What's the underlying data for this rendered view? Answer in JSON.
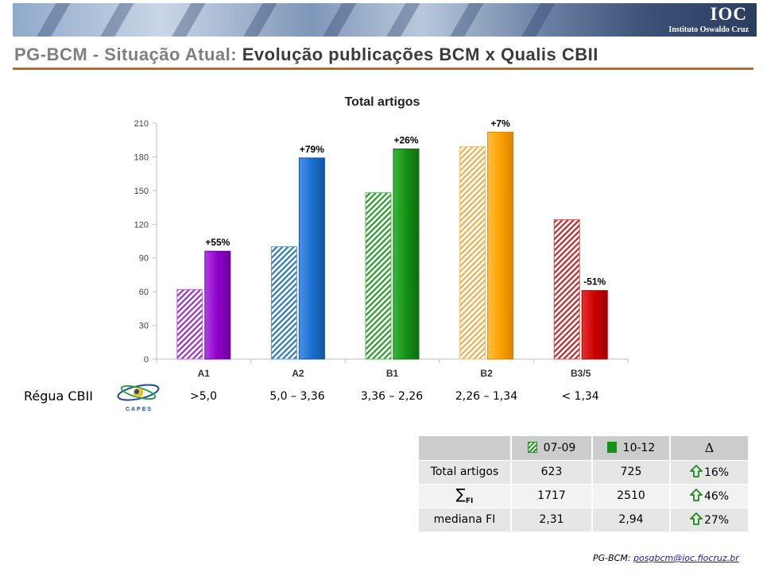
{
  "banner": {
    "logo_text": "IOC",
    "institution": "Instituto Oswaldo Cruz"
  },
  "title": {
    "prefix": "PG-BCM - Situação Atual:",
    "main": "Evolução publicações BCM x Qualis CBII"
  },
  "colors": {
    "title_rule": "#c06a1e",
    "A1": "#8c00c8",
    "A2": "#1a6ed0",
    "B1": "#169016",
    "B2": "#ffa000",
    "B3_5": "#cc0000"
  },
  "chart_data": {
    "type": "bar",
    "title": "Total artigos",
    "categories": [
      "A1",
      "A2",
      "B1",
      "B2",
      "B3/5"
    ],
    "series": [
      {
        "name": "07-09",
        "pattern": "hatched",
        "values": [
          62,
          100,
          148,
          189,
          124
        ]
      },
      {
        "name": "10-12",
        "pattern": "solid",
        "values": [
          96,
          179,
          187,
          202,
          61
        ]
      }
    ],
    "change_labels": [
      "+55%",
      "+79%",
      "+26%",
      "+7%",
      "-51%"
    ],
    "ylim": [
      0,
      210
    ],
    "yticks": [
      0,
      30,
      60,
      90,
      120,
      150,
      180,
      210
    ],
    "grid": true
  },
  "regua": {
    "label": "Régua CBII",
    "logo_text": "CAPES",
    "values": [
      ">5,0",
      "5,0 – 3,36",
      "3,36 – 2,26",
      "2,26 – 1,34",
      "< 1,34"
    ]
  },
  "table": {
    "headers": [
      "",
      "07-09",
      "10-12",
      "Δ"
    ],
    "rows": [
      {
        "label": "Total artigos",
        "v1": "623",
        "v2": "725",
        "delta": "16%"
      },
      {
        "label": "∑",
        "label_sub": "FI",
        "v1": "1717",
        "v2": "2510",
        "delta": "46%"
      },
      {
        "label": "mediana FI",
        "v1": "2,31",
        "v2": "2,94",
        "delta": "27%"
      }
    ]
  },
  "footer": {
    "label": "PG-BCM:",
    "email": "posgbcm@ioc.fiocruz.br"
  }
}
